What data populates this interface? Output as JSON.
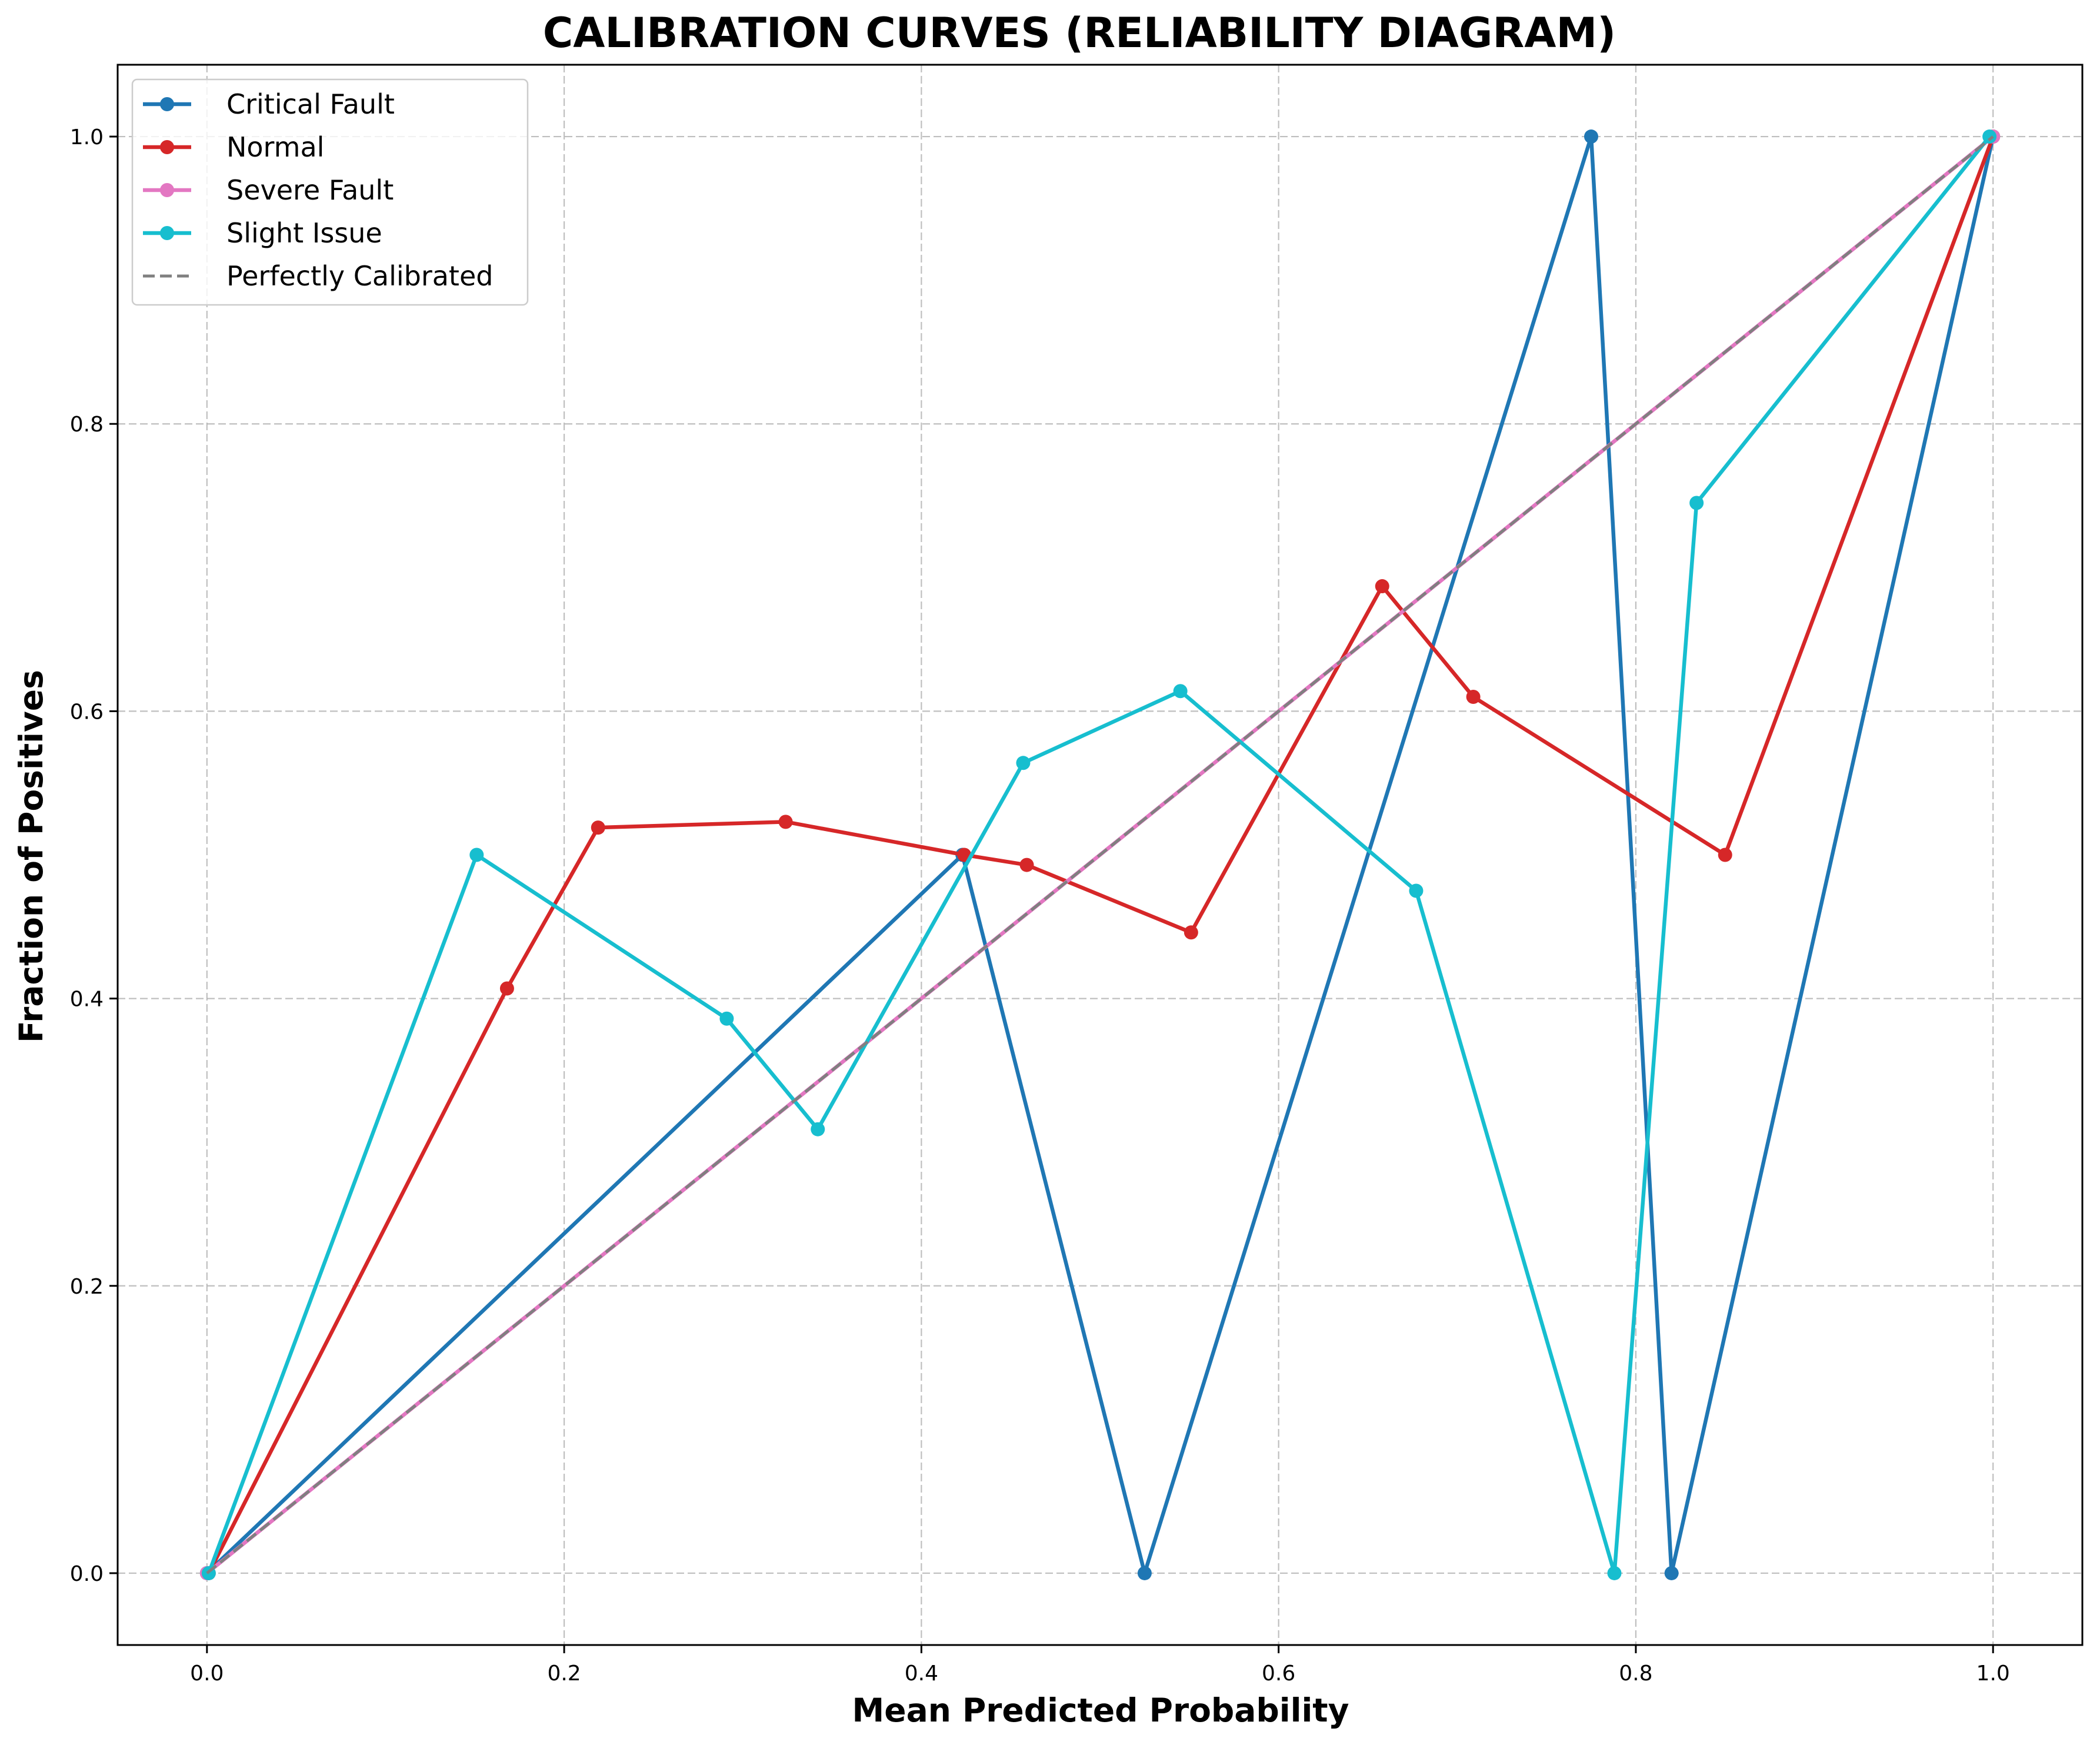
{
  "chart_data": {
    "type": "line",
    "title": "CALIBRATION CURVES (RELIABILITY DIAGRAM)",
    "xlabel": "Mean Predicted Probability",
    "ylabel": "Fraction of Positives",
    "xlim": [
      -0.05,
      1.05
    ],
    "ylim": [
      -0.05,
      1.05
    ],
    "grid": true,
    "legend_position": "top-left",
    "x_ticks": [
      "0.0",
      "0.2",
      "0.4",
      "0.6",
      "0.8",
      "1.0"
    ],
    "y_ticks": [
      "0.0",
      "0.2",
      "0.4",
      "0.6",
      "0.8",
      "1.0"
    ],
    "series": [
      {
        "name": "Critical Fault",
        "color": "#1f77b4",
        "x": [
          0.0,
          0.423,
          0.525,
          0.775,
          0.82,
          1.0
        ],
        "y": [
          0.0,
          0.5,
          0.0,
          1.0,
          0.0,
          1.0
        ]
      },
      {
        "name": "Normal",
        "color": "#d62728",
        "x": [
          0.001,
          0.168,
          0.219,
          0.324,
          0.424,
          0.459,
          0.551,
          0.658,
          0.709,
          0.85,
          1.0
        ],
        "y": [
          0.0,
          0.407,
          0.519,
          0.523,
          0.5,
          0.493,
          0.446,
          0.687,
          0.61,
          0.5,
          1.0
        ]
      },
      {
        "name": "Severe Fault",
        "color": "#e377c2",
        "x": [
          0.0,
          1.0
        ],
        "y": [
          0.0,
          1.0
        ]
      },
      {
        "name": "Slight Issue",
        "color": "#17becf",
        "x": [
          0.001,
          0.151,
          0.291,
          0.342,
          0.457,
          0.545,
          0.677,
          0.788,
          0.834,
          0.998
        ],
        "y": [
          0.0,
          0.5,
          0.386,
          0.309,
          0.564,
          0.614,
          0.475,
          0.0,
          0.745,
          1.0
        ]
      }
    ],
    "reference_line": {
      "name": "Perfectly Calibrated",
      "color": "#808080",
      "style": "dashed",
      "x": [
        0,
        1
      ],
      "y": [
        0,
        1
      ]
    }
  }
}
